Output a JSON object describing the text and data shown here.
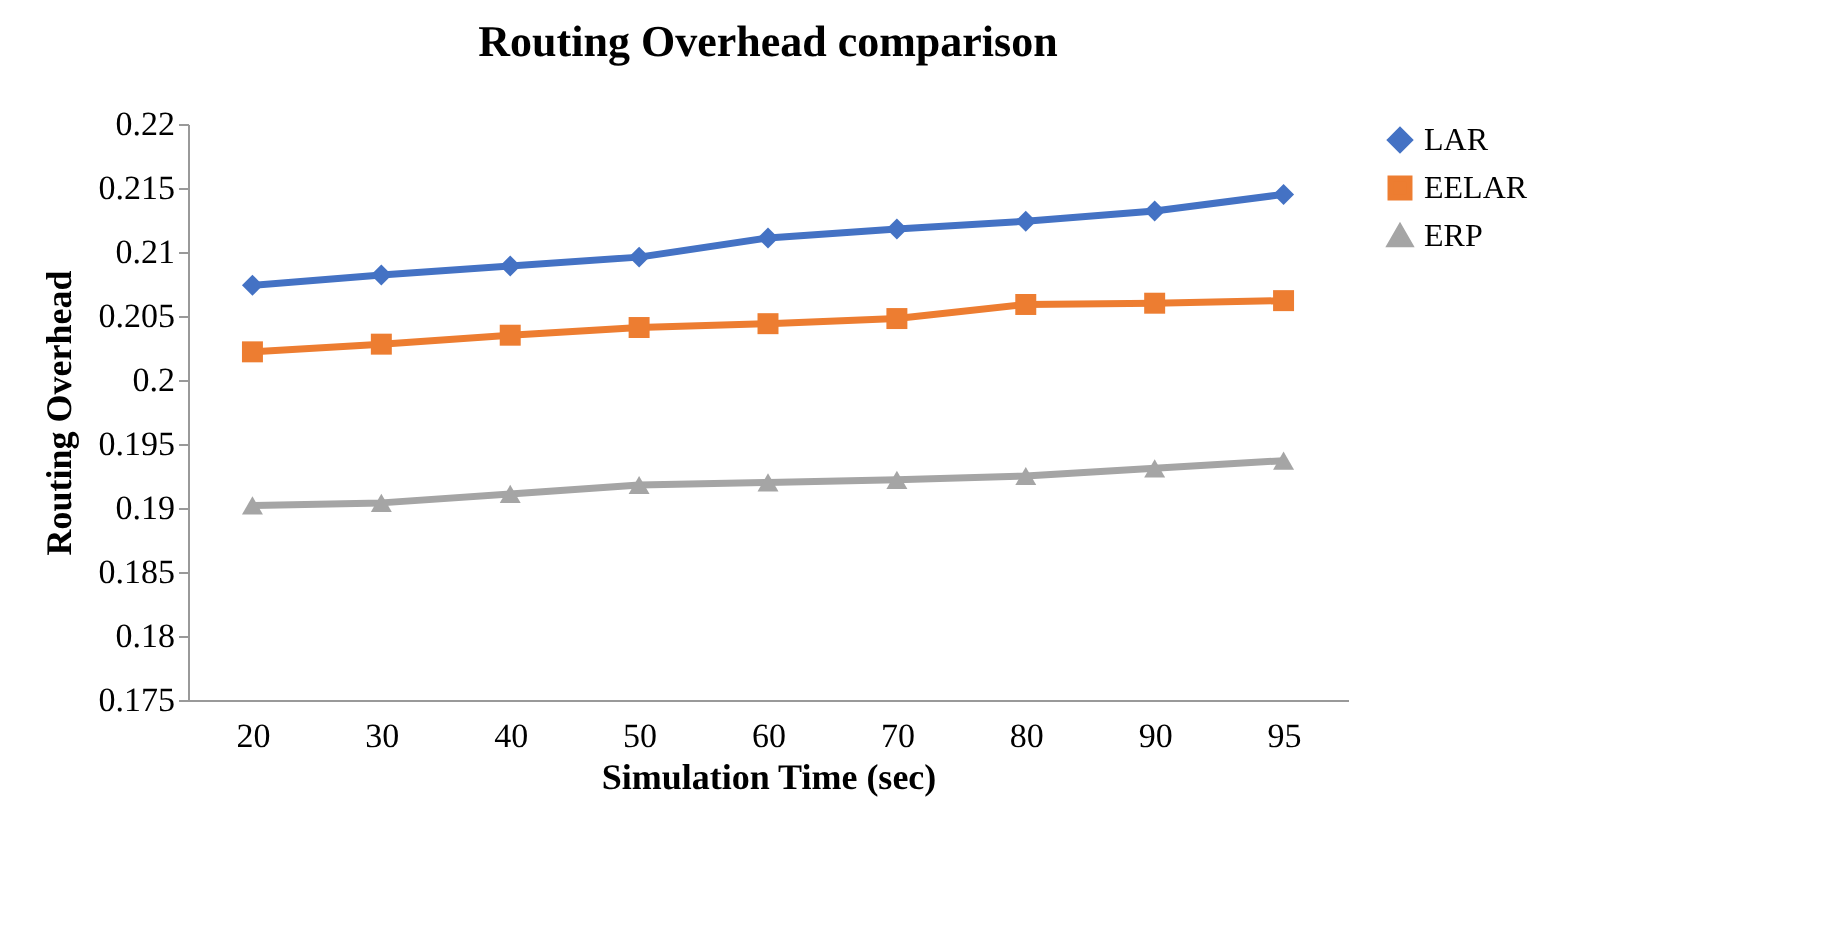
{
  "chart_data": {
    "type": "line",
    "title": "Routing Overhead comparison",
    "xlabel": "Simulation Time (sec)",
    "ylabel": "Routing Overhead",
    "categories": [
      "20",
      "30",
      "40",
      "50",
      "60",
      "70",
      "80",
      "90",
      "95"
    ],
    "series": [
      {
        "name": "LAR",
        "color": "#4472c4",
        "marker": "diamond",
        "values": [
          0.2074,
          0.2082,
          0.2089,
          0.2096,
          0.2111,
          0.2118,
          0.2124,
          0.2132,
          0.2145
        ]
      },
      {
        "name": "EELAR",
        "color": "#ed7d31",
        "marker": "square",
        "values": [
          0.2022,
          0.2028,
          0.2035,
          0.2041,
          0.2044,
          0.2048,
          0.2059,
          0.206,
          0.2062
        ]
      },
      {
        "name": "ERP",
        "color": "#a5a5a5",
        "marker": "triangle",
        "values": [
          0.1902,
          0.1904,
          0.1911,
          0.1918,
          0.192,
          0.1922,
          0.1925,
          0.1931,
          0.1937
        ]
      }
    ],
    "ylim": [
      0.175,
      0.22
    ],
    "yticks": [
      0.175,
      0.18,
      0.185,
      0.19,
      0.195,
      0.2,
      0.205,
      0.21,
      0.215,
      0.22
    ],
    "grid": false,
    "legend": "right",
    "line_style": "solid"
  }
}
